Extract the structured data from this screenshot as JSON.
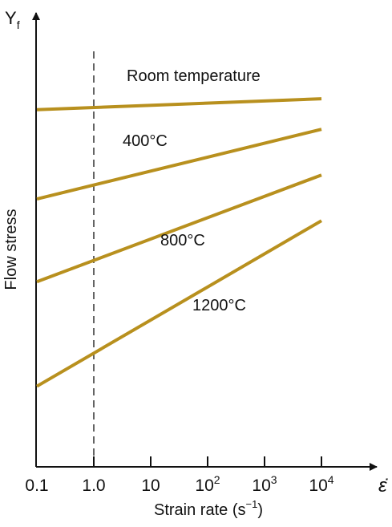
{
  "chart_data": {
    "type": "line",
    "title": "",
    "xlabel": "Strain rate (s⁻¹)",
    "xlabel_parts": {
      "main": "Strain rate (s",
      "superscript": "−1",
      "close": ")"
    },
    "ylabel": "Flow stress",
    "y_axis_symbol": {
      "main": "Y",
      "subscript": "f"
    },
    "x_axis_symbol": "ε̇",
    "x_scale": "log",
    "x_ticks": [
      {
        "value": 0.1,
        "base": "0.1",
        "exp": ""
      },
      {
        "value": 1.0,
        "base": "1.0",
        "exp": ""
      },
      {
        "value": 10,
        "base": "10",
        "exp": ""
      },
      {
        "value": 100,
        "base": "10",
        "exp": "2"
      },
      {
        "value": 1000,
        "base": "10",
        "exp": "3"
      },
      {
        "value": 10000,
        "base": "10",
        "exp": "4"
      }
    ],
    "xlim": [
      0.1,
      10000
    ],
    "ylim": [
      0,
      100
    ],
    "y_ticks": [],
    "grid": false,
    "reference_line": {
      "x": 1.0,
      "style": "dashed"
    },
    "series_color": "#b8901e",
    "series": [
      {
        "name": "Room temperature",
        "x": [
          0.1,
          10000
        ],
        "y": [
          82,
          84.5
        ]
      },
      {
        "name": "400°C",
        "x": [
          0.1,
          10000
        ],
        "y": [
          61.5,
          77.5
        ]
      },
      {
        "name": "800°C",
        "x": [
          0.1,
          10000
        ],
        "y": [
          42.5,
          67
        ]
      },
      {
        "name": "1200°C",
        "x": [
          0.1,
          10000
        ],
        "y": [
          18.5,
          56.5
        ]
      }
    ]
  }
}
